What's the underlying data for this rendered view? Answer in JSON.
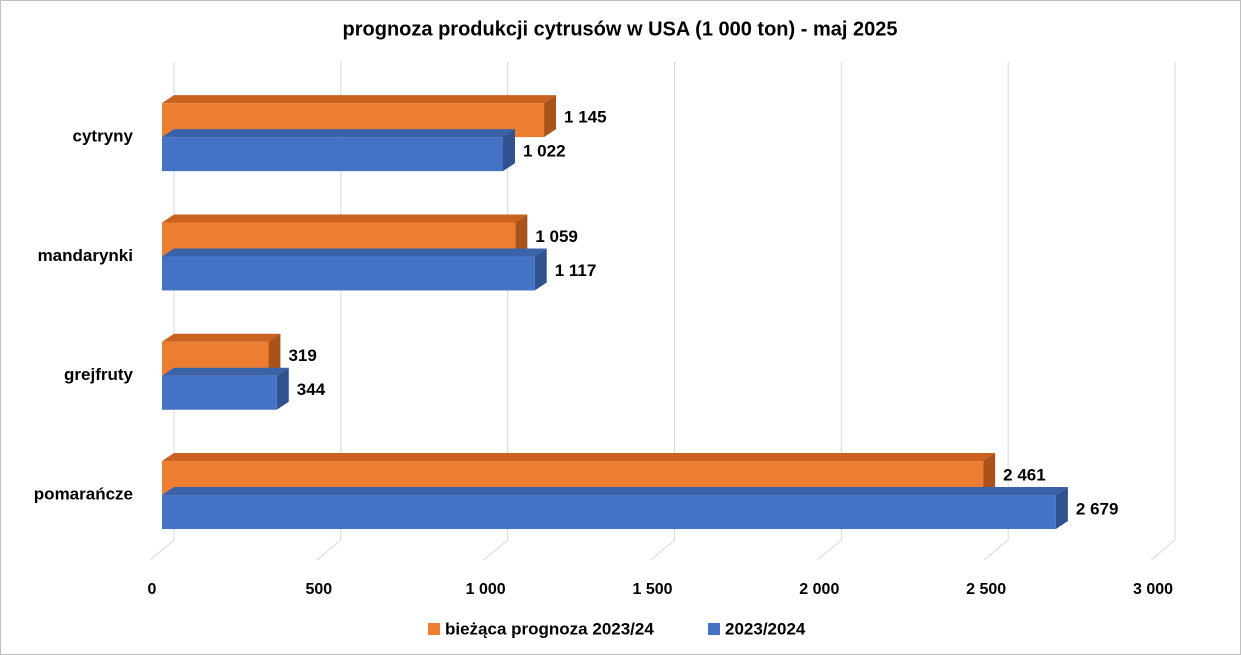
{
  "chart_data": {
    "type": "bar",
    "orientation": "horizontal",
    "title": "prognoza produkcji cytrusów w USA (1 000 ton) - maj 2025",
    "categories": [
      "cytryny",
      "mandarynki",
      "grejfruty",
      "pomarańcze"
    ],
    "series": [
      {
        "name": "bieżąca prognoza 2023/24",
        "color": "#ED7D31",
        "values": [
          1145,
          1059,
          319,
          2461
        ],
        "value_labels": [
          "1 145",
          "1 059",
          "319",
          "2 461"
        ]
      },
      {
        "name": "2023/2024",
        "color": "#4472C4",
        "values": [
          1022,
          1117,
          344,
          2679
        ],
        "value_labels": [
          "1 022",
          "1 117",
          "344",
          "2 679"
        ]
      }
    ],
    "xlim": [
      0,
      3000
    ],
    "xticks": [
      0,
      500,
      {
        "value": 1000,
        "label": "1 000"
      },
      {
        "value": 1500,
        "label": "1 500"
      },
      {
        "value": 2000,
        "label": "2 000"
      },
      {
        "value": 2500,
        "label": "2 500"
      },
      {
        "value": 3000,
        "label": "3 000"
      }
    ],
    "grid": true,
    "legend": "bottom"
  }
}
